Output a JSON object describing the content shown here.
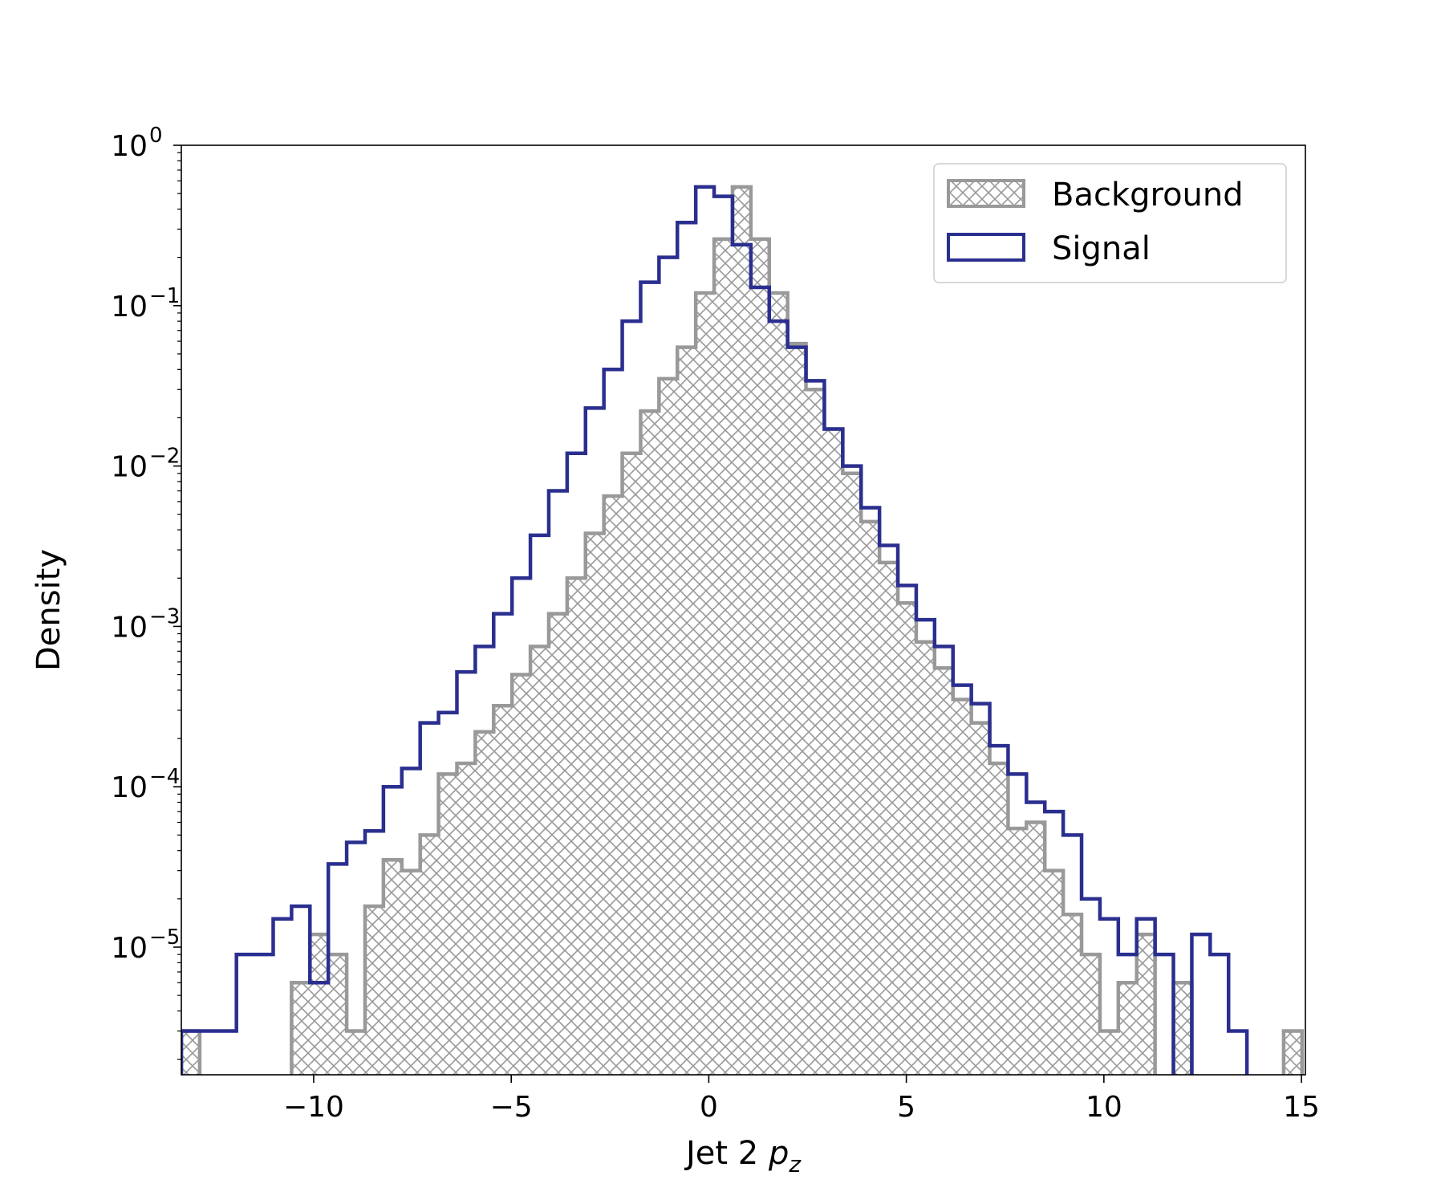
{
  "chart_data": {
    "type": "histogram",
    "ylabel": "Density",
    "xlabel": "Jet 2 p_z",
    "xlabel_parts": {
      "main": "Jet 2 ",
      "sym": "p",
      "sub": "z"
    },
    "x_scale": "linear",
    "y_scale": "log",
    "xlim": [
      -13.35,
      15.1
    ],
    "ylim": [
      1.6e-06,
      1.0
    ],
    "x_ticks": [
      -10,
      -5,
      0,
      5,
      10,
      15
    ],
    "x_tick_labels": [
      "−10",
      "−5",
      "0",
      "5",
      "10",
      "15"
    ],
    "y_ticks": [
      1e-05,
      0.0001,
      0.001,
      0.01,
      0.1,
      1
    ],
    "y_tick_labels": [
      {
        "base": "10",
        "exp": "−5"
      },
      {
        "base": "10",
        "exp": "−4"
      },
      {
        "base": "10",
        "exp": "−3"
      },
      {
        "base": "10",
        "exp": "−2"
      },
      {
        "base": "10",
        "exp": "−1"
      },
      {
        "base": "10",
        "exp": "0"
      }
    ],
    "grid": false,
    "legend_position": "top-right",
    "bin_width": 0.465,
    "series": [
      {
        "name": "Background",
        "style": "hatched-filled-step",
        "color": "#999999",
        "values": [
          [
            "-13.35",
            3e-06
          ],
          [
            "-12.885",
            0
          ],
          [
            "-12.42",
            0
          ],
          [
            "-11.955",
            0
          ],
          [
            "-11.49",
            0
          ],
          [
            "-11.025",
            0
          ],
          [
            "-10.56",
            6e-06
          ],
          [
            "-10.095",
            1.2e-05
          ],
          [
            "-9.63",
            9e-06
          ],
          [
            "-9.165",
            3e-06
          ],
          [
            "-8.7",
            1.8e-05
          ],
          [
            "-8.235",
            3.5e-05
          ],
          [
            "-7.77",
            3e-05
          ],
          [
            "-7.305",
            5e-05
          ],
          [
            "-6.84",
            0.00012
          ],
          [
            "-6.375",
            0.00014
          ],
          [
            "-5.91",
            0.00022
          ],
          [
            "-5.445",
            0.00032
          ],
          [
            "-4.98",
            0.0005
          ],
          [
            "-4.515",
            0.00075
          ],
          [
            "-4.05",
            0.0012
          ],
          [
            "-3.585",
            0.002
          ],
          [
            "-3.12",
            0.0038
          ],
          [
            "-2.655",
            0.0065
          ],
          [
            "-2.19",
            0.012
          ],
          [
            "-1.725",
            0.022
          ],
          [
            "-1.26",
            0.035
          ],
          [
            "-0.795",
            0.055
          ],
          [
            "-0.33",
            0.12
          ],
          [
            "0.135",
            0.26
          ],
          [
            "0.6",
            0.55
          ],
          [
            "1.065",
            0.26
          ],
          [
            "1.53",
            0.12
          ],
          [
            "1.995",
            0.058
          ],
          [
            "2.46",
            0.03
          ],
          [
            "2.925",
            0.017
          ],
          [
            "3.39",
            0.009
          ],
          [
            "3.855",
            0.0045
          ],
          [
            "4.32",
            0.0025
          ],
          [
            "4.785",
            0.0014
          ],
          [
            "5.25",
            0.0008
          ],
          [
            "5.715",
            0.00055
          ],
          [
            "6.18",
            0.00035
          ],
          [
            "6.645",
            0.00025
          ],
          [
            "7.11",
            0.00014
          ],
          [
            "7.575",
            5.5e-05
          ],
          [
            "8.04",
            6e-05
          ],
          [
            "8.505",
            3e-05
          ],
          [
            "8.97",
            1.6e-05
          ],
          [
            "9.435",
            9e-06
          ],
          [
            "9.9",
            3e-06
          ],
          [
            "10.365",
            6e-06
          ],
          [
            "10.83",
            1.2e-05
          ],
          [
            "11.295",
            0
          ],
          [
            "11.76",
            6e-06
          ],
          [
            "12.225",
            0
          ],
          [
            "12.69",
            0
          ],
          [
            "13.155",
            0
          ],
          [
            "13.62",
            0
          ],
          [
            "14.085",
            0
          ],
          [
            "14.55",
            3e-06
          ]
        ]
      },
      {
        "name": "Signal",
        "style": "step-outline",
        "color": "#2a2f8f",
        "values": [
          [
            "-13.35",
            3e-06
          ],
          [
            "-12.885",
            3e-06
          ],
          [
            "-12.42",
            3e-06
          ],
          [
            "-11.955",
            9e-06
          ],
          [
            "-11.49",
            9e-06
          ],
          [
            "-11.025",
            1.5e-05
          ],
          [
            "-10.56",
            1.8e-05
          ],
          [
            "-10.095",
            6e-06
          ],
          [
            "-9.63",
            3.3e-05
          ],
          [
            "-9.165",
            4.5e-05
          ],
          [
            "-8.7",
            5.3e-05
          ],
          [
            "-8.235",
            0.0001
          ],
          [
            "-7.77",
            0.00013
          ],
          [
            "-7.305",
            0.00025
          ],
          [
            "-6.84",
            0.00029
          ],
          [
            "-6.375",
            0.00052
          ],
          [
            "-5.91",
            0.00075
          ],
          [
            "-5.445",
            0.0012
          ],
          [
            "-4.98",
            0.002
          ],
          [
            "-4.515",
            0.0037
          ],
          [
            "-4.05",
            0.007
          ],
          [
            "-3.585",
            0.012
          ],
          [
            "-3.12",
            0.023
          ],
          [
            "-2.655",
            0.04
          ],
          [
            "-2.19",
            0.08
          ],
          [
            "-1.725",
            0.14
          ],
          [
            "-1.26",
            0.2
          ],
          [
            "-0.795",
            0.33
          ],
          [
            "-0.33",
            0.55
          ],
          [
            "0.135",
            0.48
          ],
          [
            "0.6",
            0.24
          ],
          [
            "1.065",
            0.13
          ],
          [
            "1.53",
            0.08
          ],
          [
            "1.995",
            0.055
          ],
          [
            "2.46",
            0.034
          ],
          [
            "2.925",
            0.017
          ],
          [
            "3.39",
            0.01
          ],
          [
            "3.855",
            0.0055
          ],
          [
            "4.32",
            0.0032
          ],
          [
            "4.785",
            0.0018
          ],
          [
            "5.25",
            0.0011
          ],
          [
            "5.715",
            0.00075
          ],
          [
            "6.18",
            0.00043
          ],
          [
            "6.645",
            0.00033
          ],
          [
            "7.11",
            0.00018
          ],
          [
            "7.575",
            0.00012
          ],
          [
            "8.04",
            8e-05
          ],
          [
            "8.505",
            7e-05
          ],
          [
            "8.97",
            5e-05
          ],
          [
            "9.435",
            2e-05
          ],
          [
            "9.9",
            1.5e-05
          ],
          [
            "10.365",
            9e-06
          ],
          [
            "10.83",
            1.5e-05
          ],
          [
            "11.295",
            9e-06
          ],
          [
            "11.76",
            0
          ],
          [
            "12.225",
            1.2e-05
          ],
          [
            "12.69",
            9e-06
          ],
          [
            "13.155",
            3e-06
          ],
          [
            "13.62",
            0
          ],
          [
            "14.085",
            0
          ],
          [
            "14.55",
            0
          ]
        ]
      }
    ]
  }
}
